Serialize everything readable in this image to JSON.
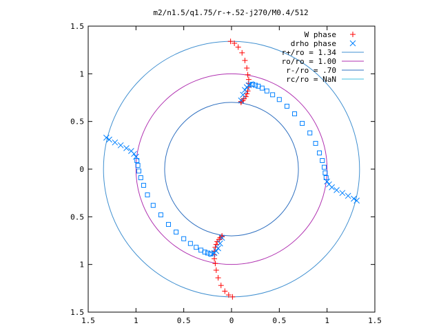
{
  "chart_data": {
    "type": "scatter",
    "title": "m2/n1.5/q1.75/r-+.52-j270/M0.4/512",
    "xlim": [
      -1.5,
      1.5
    ],
    "ylim": [
      -1.5,
      1.5
    ],
    "x_tick_values": [
      -1.5,
      -1,
      -0.5,
      0,
      0.5,
      1,
      1.5
    ],
    "x_tick_labels": [
      "1.5",
      "1",
      "0.5",
      "0",
      "0.5",
      "1",
      "1.5"
    ],
    "y_tick_values": [
      1.5,
      1,
      0.5,
      0,
      -0.5,
      -1,
      -1.5
    ],
    "y_tick_labels": [
      "1.5",
      "1",
      "0.5",
      "0",
      "0.5",
      "1",
      "1.5"
    ],
    "grid": false,
    "legend_position": "top-right",
    "legend": [
      {
        "label": "W phase",
        "marker": "plus",
        "color": "#ff0000"
      },
      {
        "label": "drho phase",
        "marker": "cross",
        "color": "#0080ff"
      },
      {
        "label": "r+/ro = 1.34",
        "marker": "line",
        "color": "#3f8fd0"
      },
      {
        "label": "ro/ro = 1.00",
        "marker": "line",
        "color": "#b030b0"
      },
      {
        "label": "r-/ro = .70",
        "marker": "line",
        "color": "#2f70c0"
      },
      {
        "label": "rc/ro = NaN",
        "marker": "line",
        "color": "#40c0e0"
      }
    ],
    "circles": [
      {
        "name": "r+/ro = 1.34",
        "radius": 1.34,
        "color": "#3f8fd0"
      },
      {
        "name": "ro/ro = 1.00",
        "radius": 1.0,
        "color": "#b030b0"
      },
      {
        "name": "r-/ro = .70",
        "radius": 0.7,
        "color": "#2f70c0"
      }
    ],
    "series": [
      {
        "name": "W phase",
        "marker": "plus",
        "color": "#ff0000",
        "x": [
          -0.01,
          0.03,
          0.07,
          0.11,
          0.14,
          0.16,
          0.17,
          0.18,
          0.18,
          0.18,
          0.17,
          0.16,
          0.15,
          0.13,
          0.12,
          0.1,
          0.1,
          0.01,
          -0.03,
          -0.07,
          -0.11,
          -0.14,
          -0.16,
          -0.17,
          -0.18,
          -0.18,
          -0.18,
          -0.17,
          -0.16,
          -0.15,
          -0.13,
          -0.12,
          -0.1,
          -0.1
        ],
        "y": [
          1.34,
          1.32,
          1.28,
          1.22,
          1.14,
          1.06,
          0.99,
          0.94,
          0.9,
          0.86,
          0.82,
          0.79,
          0.76,
          0.74,
          0.72,
          0.71,
          0.7,
          -1.34,
          -1.32,
          -1.28,
          -1.22,
          -1.14,
          -1.06,
          -0.99,
          -0.94,
          -0.9,
          -0.86,
          -0.82,
          -0.79,
          -0.76,
          -0.74,
          -0.72,
          -0.71,
          -0.7
        ]
      },
      {
        "name": "drho phase",
        "marker": "cross",
        "color": "#0080ff",
        "x": [
          0.1,
          0.12,
          0.14,
          0.16,
          0.18,
          0.2,
          0.22,
          0.25,
          0.28,
          0.32,
          0.37,
          0.43,
          0.5,
          0.58,
          0.66,
          0.74,
          0.82,
          0.88,
          0.92,
          0.95,
          0.97,
          0.98,
          0.99,
          1.0,
          1.02,
          1.05,
          1.1,
          1.16,
          1.22,
          1.28,
          1.31,
          -0.1,
          -0.12,
          -0.14,
          -0.16,
          -0.18,
          -0.2,
          -0.22,
          -0.25,
          -0.28,
          -0.32,
          -0.37,
          -0.43,
          -0.5,
          -0.58,
          -0.66,
          -0.74,
          -0.82,
          -0.88,
          -0.92,
          -0.95,
          -0.97,
          -0.98,
          -0.99,
          -1.0,
          -1.02,
          -1.05,
          -1.1,
          -1.16,
          -1.22,
          -1.28,
          -1.31
        ],
        "y": [
          0.72,
          0.78,
          0.83,
          0.86,
          0.88,
          0.89,
          0.89,
          0.88,
          0.87,
          0.85,
          0.82,
          0.78,
          0.73,
          0.66,
          0.58,
          0.48,
          0.38,
          0.27,
          0.17,
          0.09,
          0.02,
          -0.04,
          -0.09,
          -0.13,
          -0.16,
          -0.19,
          -0.22,
          -0.25,
          -0.28,
          -0.31,
          -0.33,
          -0.72,
          -0.78,
          -0.83,
          -0.86,
          -0.88,
          -0.89,
          -0.89,
          -0.88,
          -0.87,
          -0.85,
          -0.82,
          -0.78,
          -0.73,
          -0.66,
          -0.58,
          -0.48,
          -0.38,
          -0.27,
          -0.17,
          -0.09,
          -0.02,
          0.04,
          0.09,
          0.13,
          0.16,
          0.19,
          0.22,
          0.25,
          0.28,
          0.31,
          0.33
        ]
      }
    ]
  }
}
